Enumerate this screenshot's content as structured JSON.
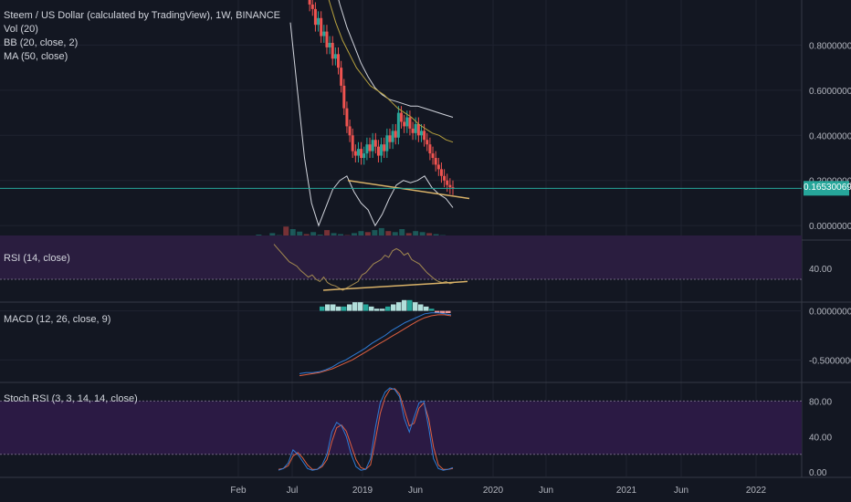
{
  "colors": {
    "background": "#131722",
    "grid": "#1f2330",
    "separator": "#363a45",
    "up": "#26a69a",
    "down": "#ef5350",
    "bb": "#d1d4dc",
    "ma": "#b7a13e",
    "trendline": "#d9b268",
    "rsi_line": "#a38a50",
    "rsi_band": "#2a1d3f",
    "macd_line": "#2f7cd6",
    "signal_line": "#e06040",
    "stoch_k": "#2f7cd6",
    "stoch_d": "#e06040",
    "stoch_band": "#2b1a44",
    "price_tag": "#26a69a"
  },
  "legends": {
    "title": "Steem / US Dollar (calculated by TradingView), 1W, BINANCE",
    "vol": "Vol (20)",
    "bb": "BB (20, close, 2)",
    "ma": "MA (50, close)",
    "rsi": "RSI (14, close)",
    "macd": "MACD (12, 26, close, 9)",
    "stoch": "Stoch RSI (3, 3, 14, 14, close)"
  },
  "last_price_label": "0.16530069",
  "chart_data": [
    {
      "type": "candlestick",
      "pane": "price",
      "xlabels": [
        "Feb",
        "Jul",
        "2019",
        "Jun",
        "2020",
        "Jun",
        "2021",
        "Jun",
        "2022"
      ],
      "ylabels": [
        "0.80000000",
        "0.60000000",
        "0.40000000",
        "0.20000000",
        "0.00000000"
      ],
      "ylim": [
        -0.06,
        1.0
      ],
      "last_price": 0.1653,
      "candles_close": [
        1.06,
        0.98,
        0.96,
        0.89,
        0.92,
        0.84,
        0.86,
        0.79,
        0.81,
        0.74,
        0.76,
        0.7,
        0.62,
        0.52,
        0.44,
        0.4,
        0.33,
        0.31,
        0.34,
        0.3,
        0.32,
        0.36,
        0.33,
        0.38,
        0.35,
        0.31,
        0.36,
        0.33,
        0.4,
        0.37,
        0.42,
        0.39,
        0.5,
        0.46,
        0.44,
        0.48,
        0.43,
        0.41,
        0.45,
        0.4,
        0.42,
        0.38,
        0.36,
        0.32,
        0.3,
        0.27,
        0.25,
        0.22,
        0.2,
        0.18,
        0.17,
        0.165
      ],
      "bb_upper": [
        1.7,
        1.65,
        1.55,
        1.45,
        1.35,
        1.22,
        1.1,
        0.98,
        0.88,
        0.8,
        0.72,
        0.66,
        0.61,
        0.58,
        0.56,
        0.55,
        0.54,
        0.53,
        0.53,
        0.52,
        0.51,
        0.5,
        0.49,
        0.48
      ],
      "bb_lower": [
        0.9,
        0.6,
        0.3,
        0.1,
        0.0,
        0.08,
        0.16,
        0.2,
        0.22,
        0.15,
        0.1,
        0.07,
        0.0,
        0.05,
        0.12,
        0.18,
        0.2,
        0.19,
        0.2,
        0.22,
        0.17,
        0.14,
        0.12,
        0.08
      ],
      "ma_50": [
        1.4,
        1.3,
        1.2,
        1.1,
        1.0,
        0.9,
        0.82,
        0.76,
        0.7,
        0.66,
        0.62,
        0.6,
        0.58,
        0.55,
        0.52,
        0.5,
        0.48,
        0.45,
        0.43,
        0.41,
        0.4,
        0.38,
        0.37
      ],
      "volume": [
        5,
        7,
        4,
        9,
        6,
        12,
        8,
        25,
        20,
        15,
        10,
        14,
        9,
        18,
        12,
        10,
        8,
        12,
        16,
        14,
        18,
        22,
        16,
        14,
        20,
        12,
        16,
        14,
        12,
        10,
        8,
        6
      ]
    },
    {
      "type": "line",
      "pane": "rsi",
      "ylabels": [
        "40.00"
      ],
      "ylim": [
        10,
        65
      ],
      "band": [
        30,
        70
      ],
      "values": [
        62,
        58,
        54,
        50,
        46,
        44,
        42,
        38,
        35,
        32,
        34,
        30,
        28,
        32,
        27,
        25,
        24,
        22,
        20,
        22,
        24,
        26,
        28,
        34,
        36,
        40,
        44,
        46,
        48,
        52,
        50,
        56,
        58,
        56,
        52,
        54,
        48,
        46,
        44,
        40,
        36,
        33,
        30,
        28,
        27,
        28,
        26,
        27
      ]
    },
    {
      "type": "line",
      "pane": "macd",
      "ylabels": [
        "0.00000000",
        "-0.50000000"
      ],
      "ylim": [
        -0.72,
        0.08
      ],
      "macd": [
        -0.64,
        -0.63,
        -0.63,
        -0.62,
        -0.6,
        -0.57,
        -0.53,
        -0.5,
        -0.46,
        -0.42,
        -0.38,
        -0.33,
        -0.29,
        -0.25,
        -0.2,
        -0.16,
        -0.12,
        -0.09,
        -0.06,
        -0.03,
        -0.02,
        -0.02,
        -0.03,
        -0.04
      ],
      "signal": [
        -0.66,
        -0.65,
        -0.64,
        -0.63,
        -0.61,
        -0.59,
        -0.56,
        -0.53,
        -0.5,
        -0.46,
        -0.42,
        -0.38,
        -0.34,
        -0.3,
        -0.26,
        -0.22,
        -0.18,
        -0.14,
        -0.1,
        -0.07,
        -0.05,
        -0.04,
        -0.04,
        -0.05
      ],
      "histogram": [
        0.02,
        0.03,
        0.03,
        0.02,
        0.02,
        0.03,
        0.04,
        0.04,
        0.03,
        0.02,
        0.01,
        0.01,
        0.02,
        0.03,
        0.04,
        0.05,
        0.05,
        0.04,
        0.03,
        0.02,
        0.01,
        -0.01,
        -0.01,
        -0.01
      ]
    },
    {
      "type": "line",
      "pane": "stoch_rsi",
      "ylabels": [
        "80.00",
        "40.00",
        "0.00"
      ],
      "ylim": [
        -5,
        100
      ],
      "band": [
        20,
        80
      ],
      "k": [
        2,
        4,
        10,
        25,
        20,
        12,
        4,
        2,
        3,
        8,
        20,
        45,
        56,
        52,
        40,
        20,
        6,
        2,
        3,
        15,
        50,
        78,
        90,
        95,
        93,
        85,
        60,
        45,
        62,
        78,
        80,
        50,
        15,
        4,
        2,
        3,
        5
      ],
      "d": [
        3,
        4,
        7,
        18,
        22,
        16,
        8,
        3,
        3,
        6,
        14,
        34,
        50,
        53,
        46,
        30,
        14,
        5,
        3,
        8,
        36,
        66,
        84,
        93,
        94,
        88,
        70,
        52,
        55,
        72,
        78,
        60,
        28,
        8,
        3,
        3,
        4
      ]
    }
  ]
}
